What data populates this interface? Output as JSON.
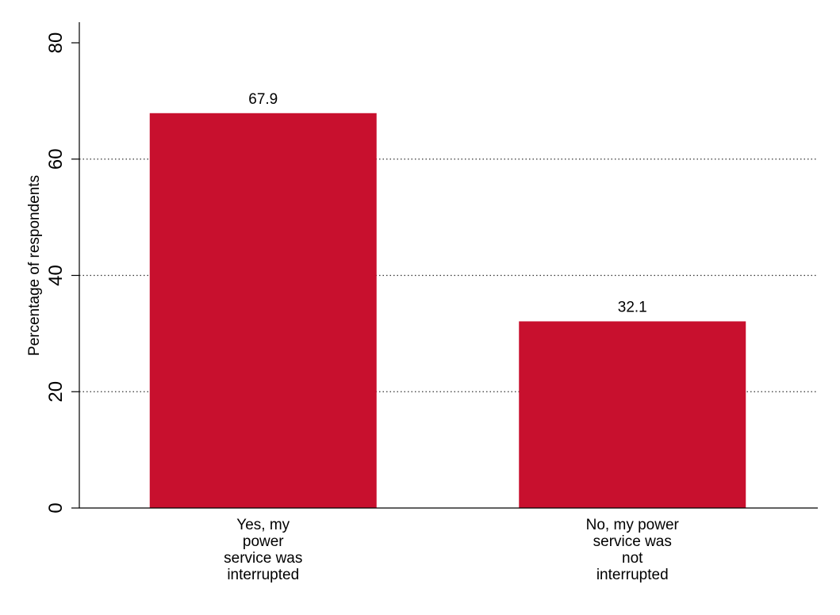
{
  "chart_data": {
    "type": "bar",
    "categories": [
      "Yes, my power service was interrupted",
      "No, my power service was not interrupted"
    ],
    "category_label_lines": [
      [
        "Yes, my",
        "power",
        "service was",
        "interrupted"
      ],
      [
        "No, my power",
        "service was",
        "not",
        "interrupted"
      ]
    ],
    "values": [
      67.9,
      32.1
    ],
    "data_labels": [
      "67.9",
      "32.1"
    ],
    "xlabel": "",
    "ylabel": "Percentage of respondents",
    "ylim": [
      0,
      80
    ],
    "yticks": [
      0,
      20,
      40,
      60,
      80
    ],
    "ytick_labels": [
      "0",
      "20",
      "40",
      "60",
      "80"
    ],
    "grid": "horizontal dotted",
    "bar_color": "#c8102e"
  }
}
